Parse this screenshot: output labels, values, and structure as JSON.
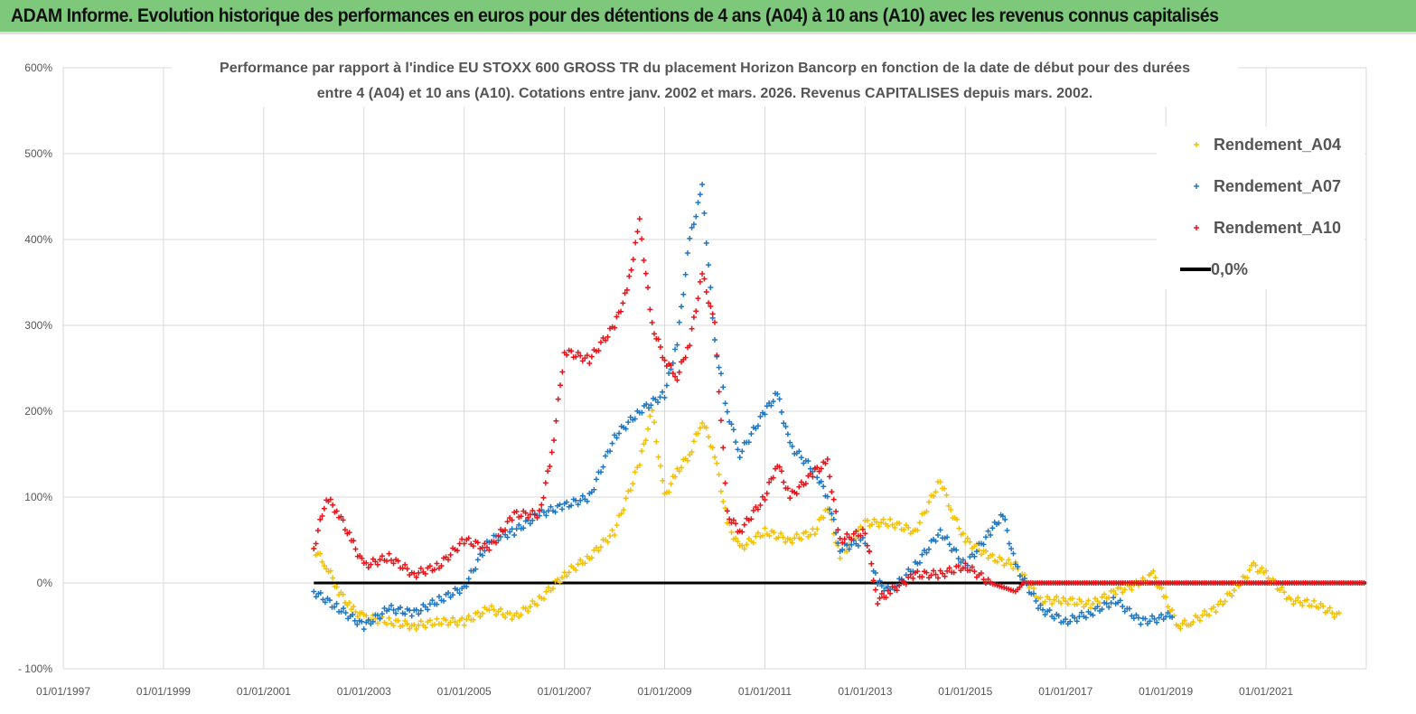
{
  "banner": {
    "title": "ADAM Informe. Evolution historique des performances en euros pour des détentions de 4 ans (A04) à 10 ans (A10) avec les revenus connus capitalisés"
  },
  "chart_data": {
    "type": "scatter",
    "title_line1": "Performance par rapport à l'indice EU STOXX 600 GROSS TR  du placement Horizon Bancorp en fonction de la date de début pour des durées",
    "title_line2": "entre 4 (A04) et 10 ans (A10). Cotations entre janv. 2002 et mars. 2026. Revenus CAPITALISES depuis mars. 2002.",
    "xlim": [
      "1997-01",
      "2023-01"
    ],
    "ylim": [
      -100,
      600
    ],
    "y_ticks": [
      "- 100%",
      "0%",
      "100%",
      "200%",
      "300%",
      "400%",
      "500%",
      "600%"
    ],
    "x_ticks": [
      "01/01/1997",
      "01/01/1999",
      "01/01/2001",
      "01/01/2003",
      "01/01/2005",
      "01/01/2007",
      "01/01/2009",
      "01/01/2011",
      "01/01/2013",
      "01/01/2015",
      "01/01/2017",
      "01/01/2019",
      "01/01/2021"
    ],
    "grid": true,
    "legend_position": "top-right",
    "series": [
      {
        "name": "Rendement_A04",
        "color": "#f5c000",
        "marker": "plus",
        "points": [
          [
            "2002-01",
            40
          ],
          [
            "2002-04",
            20
          ],
          [
            "2002-07",
            -10
          ],
          [
            "2002-10",
            -30
          ],
          [
            "2003-01",
            -40
          ],
          [
            "2003-07",
            -45
          ],
          [
            "2004-01",
            -50
          ],
          [
            "2004-07",
            -45
          ],
          [
            "2005-01",
            -45
          ],
          [
            "2005-07",
            -30
          ],
          [
            "2006-01",
            -40
          ],
          [
            "2006-07",
            -20
          ],
          [
            "2007-01",
            10
          ],
          [
            "2007-07",
            30
          ],
          [
            "2008-01",
            60
          ],
          [
            "2008-07",
            140
          ],
          [
            "2008-10",
            200
          ],
          [
            "2009-01",
            100
          ],
          [
            "2009-04",
            130
          ],
          [
            "2009-07",
            150
          ],
          [
            "2009-10",
            190
          ],
          [
            "2010-01",
            150
          ],
          [
            "2010-04",
            70
          ],
          [
            "2010-07",
            40
          ],
          [
            "2011-01",
            60
          ],
          [
            "2011-07",
            50
          ],
          [
            "2012-01",
            60
          ],
          [
            "2012-04",
            90
          ],
          [
            "2012-07",
            30
          ],
          [
            "2013-01",
            70
          ],
          [
            "2013-07",
            70
          ],
          [
            "2014-01",
            60
          ],
          [
            "2014-07",
            120
          ],
          [
            "2014-10",
            80
          ],
          [
            "2015-01",
            50
          ],
          [
            "2015-07",
            30
          ],
          [
            "2016-01",
            20
          ],
          [
            "2016-07",
            -20
          ],
          [
            "2017-01",
            -20
          ],
          [
            "2017-07",
            -25
          ],
          [
            "2018-01",
            -10
          ],
          [
            "2018-07",
            0
          ],
          [
            "2018-10",
            10
          ],
          [
            "2019-01",
            -20
          ],
          [
            "2019-04",
            -50
          ],
          [
            "2019-07",
            -45
          ],
          [
            "2020-01",
            -30
          ],
          [
            "2020-07",
            0
          ],
          [
            "2020-10",
            20
          ],
          [
            "2021-01",
            10
          ],
          [
            "2021-07",
            -20
          ],
          [
            "2022-01",
            -25
          ],
          [
            "2022-07",
            -40
          ]
        ]
      },
      {
        "name": "Rendement_A07",
        "color": "#1f77c4",
        "marker": "plus",
        "points": [
          [
            "2002-01",
            -10
          ],
          [
            "2002-07",
            -30
          ],
          [
            "2003-01",
            -50
          ],
          [
            "2003-07",
            -30
          ],
          [
            "2004-01",
            -35
          ],
          [
            "2004-07",
            -20
          ],
          [
            "2005-01",
            -5
          ],
          [
            "2005-07",
            50
          ],
          [
            "2006-01",
            60
          ],
          [
            "2006-07",
            80
          ],
          [
            "2007-01",
            90
          ],
          [
            "2007-07",
            100
          ],
          [
            "2008-01",
            170
          ],
          [
            "2008-07",
            200
          ],
          [
            "2009-01",
            220
          ],
          [
            "2009-04",
            280
          ],
          [
            "2009-07",
            400
          ],
          [
            "2009-10",
            460
          ],
          [
            "2010-01",
            280
          ],
          [
            "2010-04",
            200
          ],
          [
            "2010-07",
            150
          ],
          [
            "2011-01",
            200
          ],
          [
            "2011-04",
            220
          ],
          [
            "2011-07",
            160
          ],
          [
            "2012-01",
            130
          ],
          [
            "2012-04",
            100
          ],
          [
            "2012-07",
            40
          ],
          [
            "2013-01",
            50
          ],
          [
            "2013-04",
            0
          ],
          [
            "2013-07",
            -10
          ],
          [
            "2014-01",
            20
          ],
          [
            "2014-07",
            60
          ],
          [
            "2015-01",
            20
          ],
          [
            "2015-07",
            60
          ],
          [
            "2015-10",
            80
          ],
          [
            "2016-01",
            20
          ],
          [
            "2016-07",
            -30
          ],
          [
            "2017-01",
            -45
          ],
          [
            "2017-07",
            -35
          ],
          [
            "2018-01",
            -20
          ],
          [
            "2018-07",
            -45
          ],
          [
            "2019-01",
            -40
          ],
          [
            "2019-03",
            -35
          ]
        ]
      },
      {
        "name": "Rendement_A10",
        "color": "#e8141a",
        "marker": "plus",
        "points": [
          [
            "2002-01",
            40
          ],
          [
            "2002-04",
            100
          ],
          [
            "2002-07",
            80
          ],
          [
            "2002-10",
            50
          ],
          [
            "2003-01",
            20
          ],
          [
            "2003-07",
            30
          ],
          [
            "2004-01",
            10
          ],
          [
            "2004-07",
            20
          ],
          [
            "2005-01",
            50
          ],
          [
            "2005-07",
            40
          ],
          [
            "2006-01",
            80
          ],
          [
            "2006-07",
            80
          ],
          [
            "2006-10",
            150
          ],
          [
            "2007-01",
            270
          ],
          [
            "2007-07",
            260
          ],
          [
            "2008-01",
            300
          ],
          [
            "2008-04",
            340
          ],
          [
            "2008-07",
            420
          ],
          [
            "2008-10",
            300
          ],
          [
            "2009-01",
            260
          ],
          [
            "2009-04",
            240
          ],
          [
            "2009-07",
            280
          ],
          [
            "2009-10",
            360
          ],
          [
            "2010-01",
            300
          ],
          [
            "2010-04",
            80
          ],
          [
            "2010-07",
            60
          ],
          [
            "2011-01",
            100
          ],
          [
            "2011-04",
            140
          ],
          [
            "2011-07",
            100
          ],
          [
            "2012-01",
            130
          ],
          [
            "2012-04",
            140
          ],
          [
            "2012-07",
            50
          ],
          [
            "2013-01",
            60
          ],
          [
            "2013-04",
            -20
          ],
          [
            "2013-07",
            -10
          ],
          [
            "2014-01",
            10
          ],
          [
            "2014-07",
            10
          ],
          [
            "2015-01",
            20
          ],
          [
            "2015-07",
            0
          ],
          [
            "2016-01",
            -10
          ],
          [
            "2016-03",
            0
          ],
          [
            "2023-01",
            0
          ]
        ]
      },
      {
        "name": "0,0%",
        "color": "#000000",
        "marker": "line",
        "points": [
          [
            "2002-01",
            0
          ],
          [
            "2023-01",
            0
          ]
        ]
      }
    ]
  }
}
